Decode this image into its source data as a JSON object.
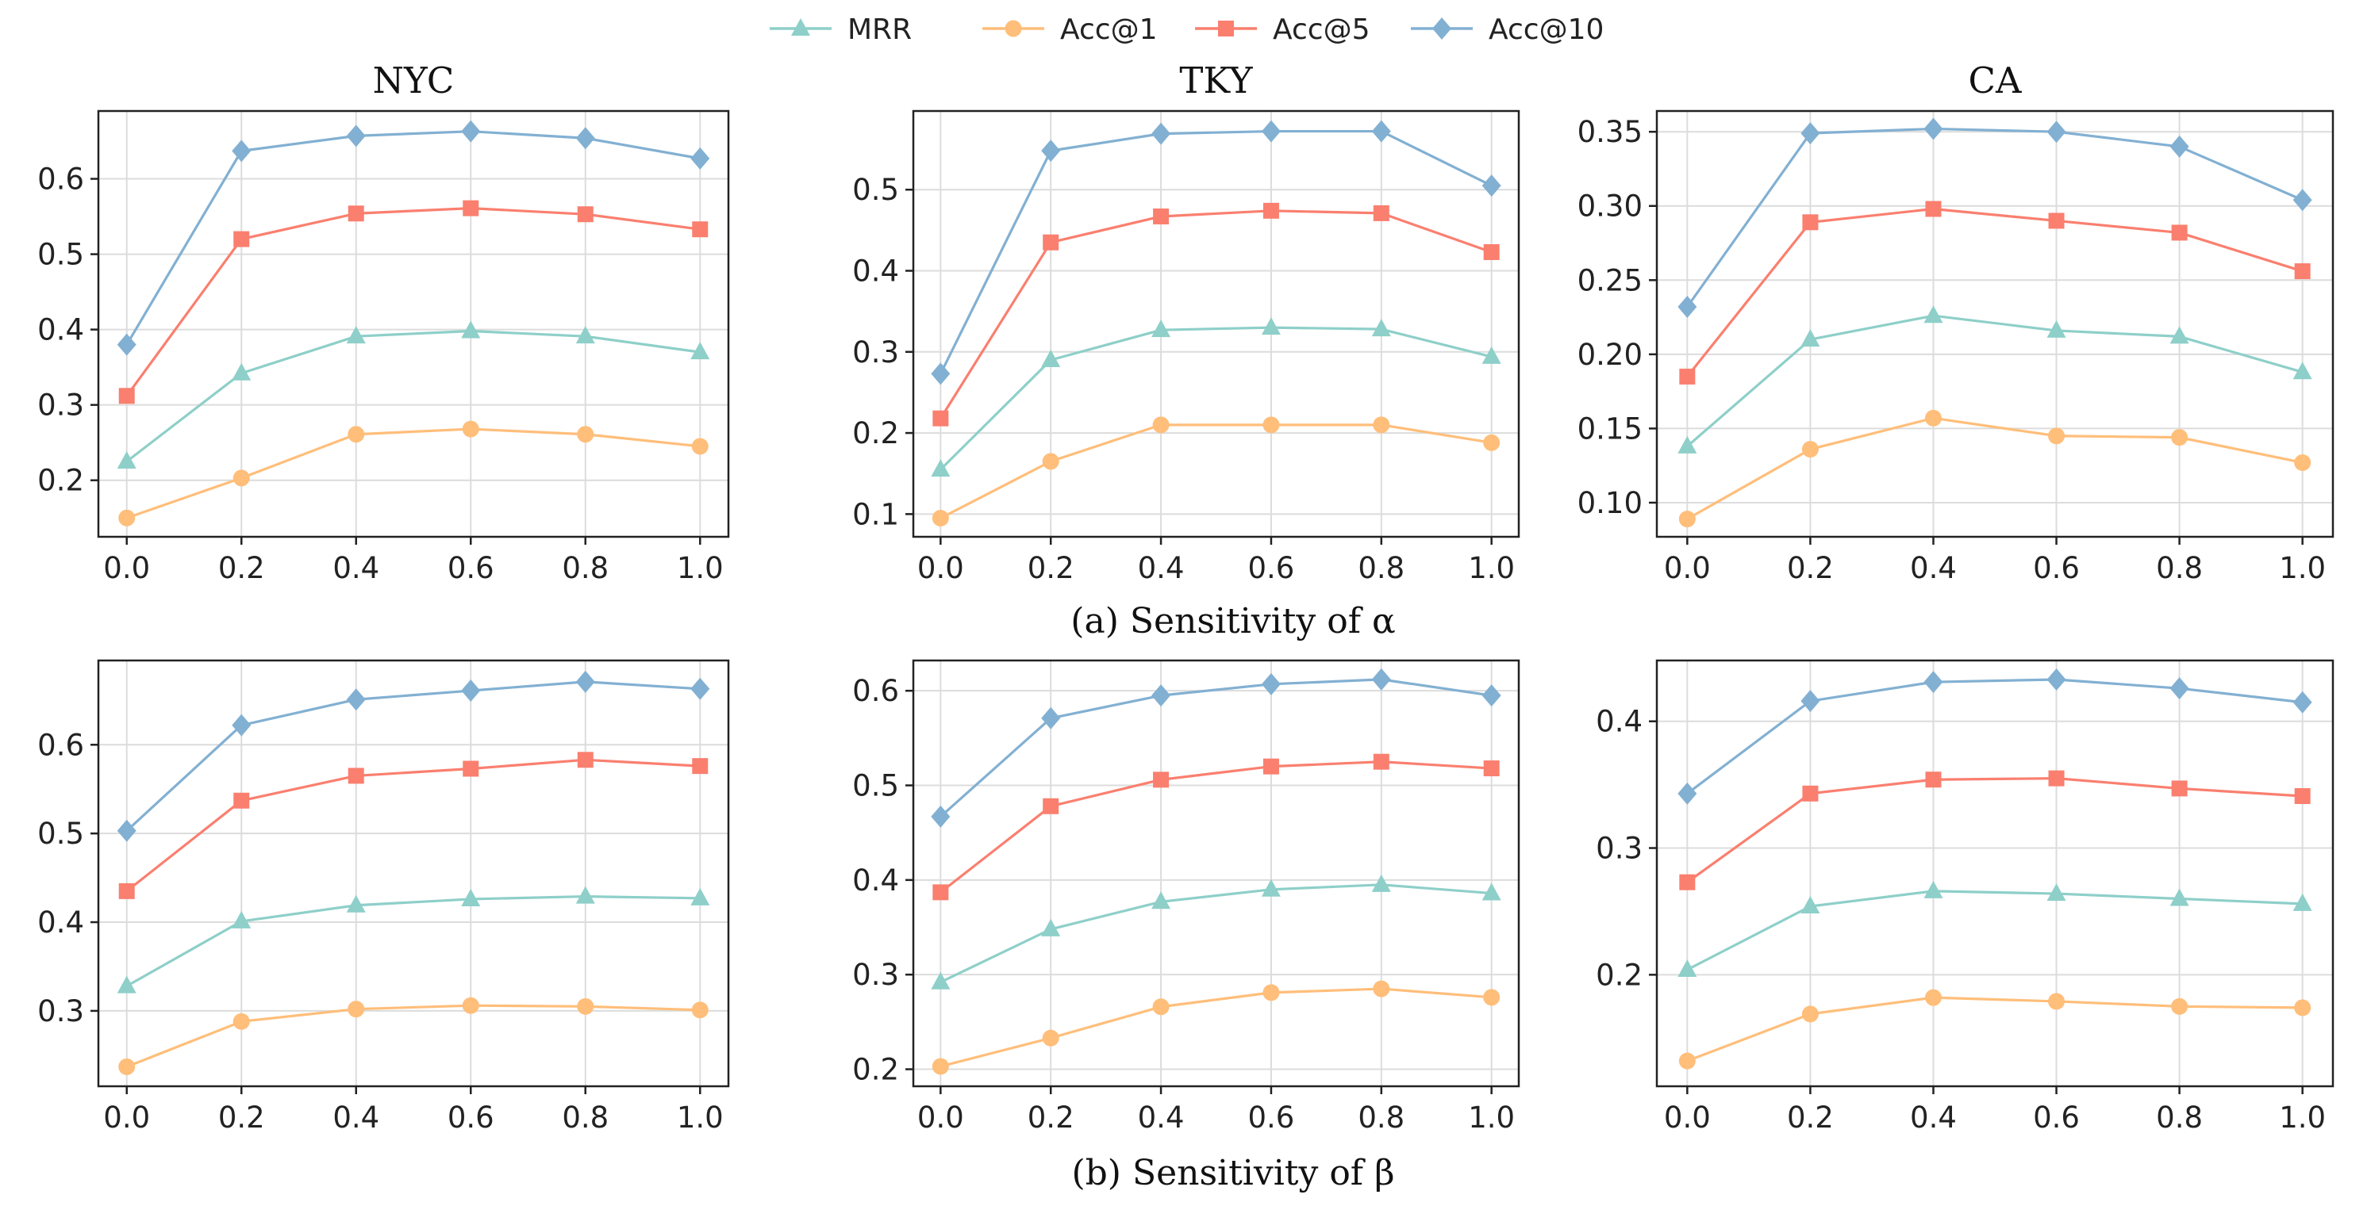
{
  "legend": [
    {
      "name": "MRR",
      "color": "#8ecfc9",
      "marker": "triangle"
    },
    {
      "name": "Acc@1",
      "color": "#ffbe7a",
      "marker": "circle"
    },
    {
      "name": "Acc@5",
      "color": "#fa7f6f",
      "marker": "square"
    },
    {
      "name": "Acc@10",
      "color": "#82b0d2",
      "marker": "diamond"
    }
  ],
  "captions": {
    "alpha": "(a) Sensitivity of α",
    "beta": "(b) Sensitivity of β"
  },
  "chart_data": [
    {
      "type": "line",
      "title": "NYC",
      "group": "alpha",
      "row": 0,
      "col": 0,
      "x": [
        0.0,
        0.2,
        0.4,
        0.6,
        0.8,
        1.0
      ],
      "xticks": [
        "0.0",
        "0.2",
        "0.4",
        "0.6",
        "0.8",
        "1.0"
      ],
      "ylim": [
        0.125,
        0.69
      ],
      "yticks": [
        0.2,
        0.3,
        0.4,
        0.5,
        0.6
      ],
      "ytick_labels": [
        "0.2",
        "0.3",
        "0.4",
        "0.5",
        "0.6"
      ],
      "series": [
        {
          "name": "MRR",
          "values": [
            0.225,
            0.342,
            0.391,
            0.398,
            0.391,
            0.37
          ]
        },
        {
          "name": "Acc@1",
          "values": [
            0.15,
            0.203,
            0.261,
            0.268,
            0.261,
            0.245
          ]
        },
        {
          "name": "Acc@5",
          "values": [
            0.312,
            0.52,
            0.554,
            0.561,
            0.553,
            0.533
          ]
        },
        {
          "name": "Acc@10",
          "values": [
            0.38,
            0.637,
            0.657,
            0.663,
            0.654,
            0.627
          ]
        }
      ]
    },
    {
      "type": "line",
      "title": "TKY",
      "group": "alpha",
      "row": 0,
      "col": 1,
      "x": [
        0.0,
        0.2,
        0.4,
        0.6,
        0.8,
        1.0
      ],
      "xticks": [
        "0.0",
        "0.2",
        "0.4",
        "0.6",
        "0.8",
        "1.0"
      ],
      "ylim": [
        0.072,
        0.597
      ],
      "yticks": [
        0.1,
        0.2,
        0.3,
        0.4,
        0.5
      ],
      "ytick_labels": [
        "0.1",
        "0.2",
        "0.3",
        "0.4",
        "0.5"
      ],
      "series": [
        {
          "name": "MRR",
          "values": [
            0.155,
            0.29,
            0.327,
            0.33,
            0.328,
            0.294
          ]
        },
        {
          "name": "Acc@1",
          "values": [
            0.095,
            0.165,
            0.21,
            0.21,
            0.21,
            0.188
          ]
        },
        {
          "name": "Acc@5",
          "values": [
            0.218,
            0.435,
            0.467,
            0.474,
            0.471,
            0.423
          ]
        },
        {
          "name": "Acc@10",
          "values": [
            0.273,
            0.548,
            0.569,
            0.572,
            0.572,
            0.505
          ]
        }
      ]
    },
    {
      "type": "line",
      "title": "CA",
      "group": "alpha",
      "row": 0,
      "col": 2,
      "x": [
        0.0,
        0.2,
        0.4,
        0.6,
        0.8,
        1.0
      ],
      "xticks": [
        "0.0",
        "0.2",
        "0.4",
        "0.6",
        "0.8",
        "1.0"
      ],
      "ylim": [
        0.077,
        0.364
      ],
      "yticks": [
        0.1,
        0.15,
        0.2,
        0.25,
        0.3,
        0.35
      ],
      "ytick_labels": [
        "0.10",
        "0.15",
        "0.20",
        "0.25",
        "0.30",
        "0.35"
      ],
      "series": [
        {
          "name": "MRR",
          "values": [
            0.138,
            0.21,
            0.226,
            0.216,
            0.212,
            0.188
          ]
        },
        {
          "name": "Acc@1",
          "values": [
            0.089,
            0.136,
            0.157,
            0.145,
            0.144,
            0.127
          ]
        },
        {
          "name": "Acc@5",
          "values": [
            0.185,
            0.289,
            0.298,
            0.29,
            0.282,
            0.256
          ]
        },
        {
          "name": "Acc@10",
          "values": [
            0.232,
            0.349,
            0.352,
            0.35,
            0.34,
            0.304
          ]
        }
      ]
    },
    {
      "type": "line",
      "title": "",
      "group": "beta",
      "row": 1,
      "col": 0,
      "x": [
        0.0,
        0.2,
        0.4,
        0.6,
        0.8,
        1.0
      ],
      "xticks": [
        "0.0",
        "0.2",
        "0.4",
        "0.6",
        "0.8",
        "1.0"
      ],
      "ylim": [
        0.215,
        0.695
      ],
      "yticks": [
        0.3,
        0.4,
        0.5,
        0.6
      ],
      "ytick_labels": [
        "0.3",
        "0.4",
        "0.5",
        "0.6"
      ],
      "series": [
        {
          "name": "MRR",
          "values": [
            0.328,
            0.401,
            0.419,
            0.426,
            0.429,
            0.427
          ]
        },
        {
          "name": "Acc@1",
          "values": [
            0.237,
            0.288,
            0.302,
            0.306,
            0.305,
            0.301
          ]
        },
        {
          "name": "Acc@5",
          "values": [
            0.435,
            0.537,
            0.565,
            0.573,
            0.583,
            0.576
          ]
        },
        {
          "name": "Acc@10",
          "values": [
            0.503,
            0.622,
            0.651,
            0.661,
            0.671,
            0.663
          ]
        }
      ]
    },
    {
      "type": "line",
      "title": "",
      "group": "beta",
      "row": 1,
      "col": 1,
      "x": [
        0.0,
        0.2,
        0.4,
        0.6,
        0.8,
        1.0
      ],
      "xticks": [
        "0.0",
        "0.2",
        "0.4",
        "0.6",
        "0.8",
        "1.0"
      ],
      "ylim": [
        0.182,
        0.632
      ],
      "yticks": [
        0.2,
        0.3,
        0.4,
        0.5,
        0.6
      ],
      "ytick_labels": [
        "0.2",
        "0.3",
        "0.4",
        "0.5",
        "0.6"
      ],
      "series": [
        {
          "name": "MRR",
          "values": [
            0.292,
            0.348,
            0.377,
            0.39,
            0.395,
            0.386
          ]
        },
        {
          "name": "Acc@1",
          "values": [
            0.203,
            0.233,
            0.266,
            0.281,
            0.285,
            0.276
          ]
        },
        {
          "name": "Acc@5",
          "values": [
            0.387,
            0.478,
            0.506,
            0.52,
            0.525,
            0.518
          ]
        },
        {
          "name": "Acc@10",
          "values": [
            0.467,
            0.571,
            0.595,
            0.607,
            0.612,
            0.595
          ]
        }
      ]
    },
    {
      "type": "line",
      "title": "",
      "group": "beta",
      "row": 1,
      "col": 2,
      "x": [
        0.0,
        0.2,
        0.4,
        0.6,
        0.8,
        1.0
      ],
      "xticks": [
        "0.0",
        "0.2",
        "0.4",
        "0.6",
        "0.8",
        "1.0"
      ],
      "ylim": [
        0.112,
        0.448
      ],
      "yticks": [
        0.2,
        0.3,
        0.4
      ],
      "ytick_labels": [
        "0.2",
        "0.3",
        "0.4"
      ],
      "series": [
        {
          "name": "MRR",
          "values": [
            0.204,
            0.254,
            0.266,
            0.264,
            0.26,
            0.256
          ]
        },
        {
          "name": "Acc@1",
          "values": [
            0.132,
            0.169,
            0.182,
            0.179,
            0.175,
            0.174
          ]
        },
        {
          "name": "Acc@5",
          "values": [
            0.273,
            0.343,
            0.354,
            0.355,
            0.347,
            0.341
          ]
        },
        {
          "name": "Acc@10",
          "values": [
            0.343,
            0.416,
            0.431,
            0.433,
            0.426,
            0.415
          ]
        }
      ]
    }
  ]
}
